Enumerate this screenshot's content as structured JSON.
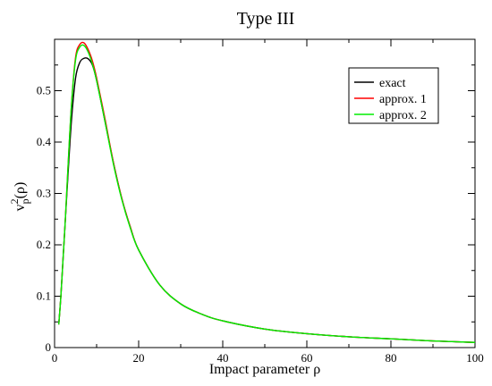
{
  "chart_data": {
    "type": "line",
    "title": "Type III",
    "xlabel": "Impact parameter ρ",
    "ylabel": "v_p^2(ρ)",
    "xlim": [
      0,
      100
    ],
    "ylim": [
      0,
      0.6
    ],
    "xticks": [
      "0",
      "20",
      "40",
      "60",
      "80",
      "100"
    ],
    "yticks": [
      "0",
      "0.1",
      "0.2",
      "0.3",
      "0.4",
      "0.5"
    ],
    "grid": false,
    "legend_position": "top-right",
    "series": [
      {
        "name": "exact",
        "color": "#000000",
        "x": [
          1,
          1.5,
          2,
          2.5,
          3,
          4,
          5,
          6,
          7,
          8,
          9,
          10,
          12,
          14,
          16,
          18,
          20,
          25,
          30,
          35,
          40,
          50,
          60,
          70,
          80,
          90,
          100
        ],
        "y": [
          0.045,
          0.1,
          0.17,
          0.24,
          0.31,
          0.44,
          0.525,
          0.555,
          0.563,
          0.562,
          0.55,
          0.52,
          0.44,
          0.36,
          0.29,
          0.235,
          0.19,
          0.122,
          0.085,
          0.065,
          0.052,
          0.036,
          0.027,
          0.021,
          0.017,
          0.013,
          0.01
        ]
      },
      {
        "name": "approx. 1",
        "color": "#ff0000",
        "x": [
          1,
          1.5,
          2,
          2.5,
          3,
          4,
          5,
          6,
          7,
          8,
          9,
          10,
          12,
          14,
          16,
          18,
          20,
          25,
          30,
          35,
          40,
          50,
          60,
          70,
          80,
          90,
          100
        ],
        "y": [
          0.045,
          0.1,
          0.17,
          0.24,
          0.32,
          0.47,
          0.565,
          0.59,
          0.593,
          0.58,
          0.558,
          0.525,
          0.445,
          0.36,
          0.29,
          0.235,
          0.19,
          0.122,
          0.085,
          0.065,
          0.052,
          0.036,
          0.027,
          0.021,
          0.017,
          0.013,
          0.01
        ]
      },
      {
        "name": "approx. 2",
        "color": "#00ee00",
        "x": [
          1,
          1.5,
          2,
          2.5,
          3,
          4,
          5,
          6,
          7,
          8,
          9,
          10,
          12,
          14,
          16,
          18,
          20,
          25,
          30,
          35,
          40,
          50,
          60,
          70,
          80,
          90,
          100
        ],
        "y": [
          0.045,
          0.1,
          0.17,
          0.24,
          0.32,
          0.47,
          0.56,
          0.585,
          0.588,
          0.575,
          0.552,
          0.52,
          0.44,
          0.357,
          0.288,
          0.233,
          0.19,
          0.122,
          0.085,
          0.065,
          0.052,
          0.036,
          0.027,
          0.021,
          0.017,
          0.013,
          0.01
        ]
      }
    ]
  }
}
